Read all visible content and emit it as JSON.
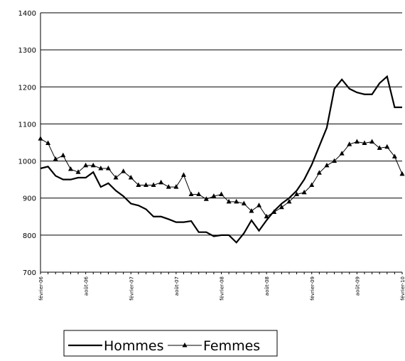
{
  "chart_data": {
    "type": "line",
    "x": [
      "février-06",
      null,
      null,
      null,
      null,
      null,
      "août-06",
      null,
      null,
      null,
      null,
      null,
      "février-07",
      null,
      null,
      null,
      null,
      null,
      "août-07",
      null,
      null,
      null,
      null,
      null,
      "février-08",
      null,
      null,
      null,
      null,
      null,
      "août-08",
      null,
      null,
      null,
      null,
      null,
      "février-09",
      null,
      null,
      null,
      null,
      null,
      "août-09",
      null,
      null,
      null,
      null,
      null,
      "février-10"
    ],
    "series": [
      {
        "name": "Hommes",
        "color": "#000000",
        "marker": "none",
        "values": [
          980,
          985,
          960,
          950,
          950,
          955,
          955,
          970,
          930,
          940,
          920,
          905,
          885,
          880,
          870,
          850,
          850,
          843,
          835,
          835,
          838,
          808,
          808,
          797,
          800,
          800,
          780,
          805,
          840,
          812,
          840,
          865,
          885,
          900,
          920,
          950,
          990,
          1040,
          1090,
          1195,
          1220,
          1195,
          1185,
          1180,
          1180,
          1210,
          1228,
          1145,
          1145
        ]
      },
      {
        "name": "Femmes",
        "color": "#000000",
        "marker": "triangle",
        "values": [
          1060,
          1048,
          1005,
          1015,
          978,
          970,
          988,
          988,
          980,
          980,
          955,
          972,
          955,
          935,
          935,
          935,
          942,
          930,
          930,
          962,
          910,
          910,
          897,
          905,
          910,
          890,
          890,
          885,
          865,
          880,
          850,
          862,
          875,
          890,
          910,
          915,
          935,
          968,
          988,
          1000,
          1020,
          1045,
          1052,
          1048,
          1052,
          1035,
          1038,
          1012,
          965
        ]
      }
    ],
    "ylim": [
      700,
      1400
    ],
    "yticks": [
      700,
      800,
      900,
      1000,
      1100,
      1200,
      1300,
      1400
    ],
    "grid": true,
    "legend": "bottom"
  }
}
